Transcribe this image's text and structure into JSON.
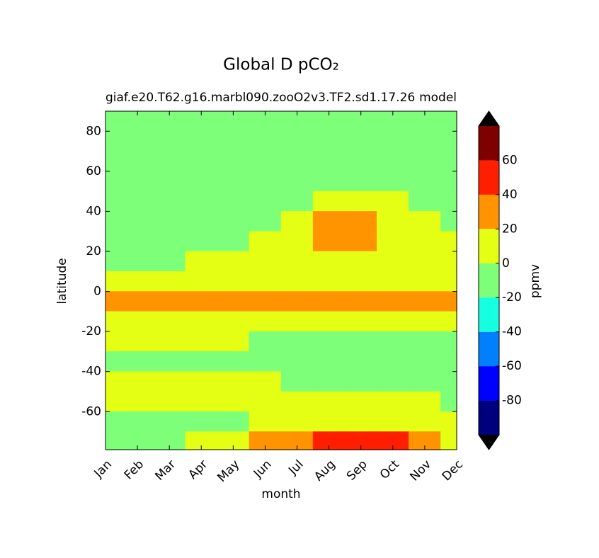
{
  "chart_data": {
    "type": "contourf",
    "title": "Global D pCO₂",
    "subtitle_left": "giaf.e20.T62.g16.marbl090.zooO2v3.TF2.sd1.17.26",
    "subtitle_right": "model",
    "x_label": "month",
    "y_label": "latitude",
    "categories": [
      "Jan",
      "Feb",
      "Mar",
      "Apr",
      "May",
      "Jun",
      "Jul",
      "Aug",
      "Sep",
      "Oct",
      "Nov",
      "Dec"
    ],
    "lat": [
      85,
      75,
      65,
      55,
      45,
      35,
      25,
      15,
      5,
      -5,
      -15,
      -25,
      -35,
      -45,
      -55,
      -65,
      -75
    ],
    "z": [
      [
        -8,
        -8,
        -8,
        -8,
        -8,
        -8,
        -8,
        -8,
        -8,
        -8,
        -8,
        -8
      ],
      [
        -8,
        -8,
        -8,
        -8,
        -8,
        -8,
        -8,
        -8,
        -8,
        -8,
        -8,
        -8
      ],
      [
        -8,
        -8,
        -8,
        -8,
        -8,
        -8,
        -8,
        -8,
        -8,
        -8,
        -8,
        -8
      ],
      [
        -8,
        -8,
        -8,
        -8,
        -8,
        -8,
        -8,
        -8,
        -8,
        -8,
        -8,
        -8
      ],
      [
        -8,
        -8,
        -8,
        -8,
        -8,
        -8,
        -8,
        10,
        10,
        10,
        -8,
        -8
      ],
      [
        -8,
        -8,
        -8,
        -8,
        -8,
        -8,
        10,
        28,
        28,
        10,
        10,
        -8
      ],
      [
        -8,
        -8,
        -8,
        -8,
        -8,
        10,
        10,
        28,
        28,
        10,
        10,
        10
      ],
      [
        -8,
        -8,
        -8,
        10,
        10,
        10,
        10,
        10,
        10,
        10,
        10,
        10
      ],
      [
        10,
        10,
        10,
        10,
        10,
        10,
        10,
        10,
        10,
        10,
        10,
        10
      ],
      [
        28,
        28,
        28,
        28,
        28,
        28,
        28,
        28,
        28,
        28,
        28,
        28
      ],
      [
        10,
        10,
        10,
        10,
        10,
        10,
        10,
        10,
        10,
        10,
        10,
        10
      ],
      [
        10,
        10,
        10,
        10,
        10,
        -8,
        -8,
        -8,
        -8,
        -8,
        -8,
        -8
      ],
      [
        -8,
        -8,
        -8,
        -8,
        -8,
        -8,
        -8,
        -8,
        -8,
        -8,
        -8,
        -8
      ],
      [
        10,
        10,
        10,
        10,
        10,
        10,
        -8,
        -8,
        -8,
        -8,
        -8,
        -8
      ],
      [
        10,
        10,
        10,
        10,
        10,
        10,
        10,
        10,
        10,
        10,
        10,
        -8
      ],
      [
        -8,
        -8,
        -8,
        -8,
        -8,
        10,
        10,
        10,
        10,
        10,
        10,
        10
      ],
      [
        -8,
        -8,
        -8,
        10,
        10,
        28,
        28,
        45,
        45,
        45,
        28,
        10
      ]
    ],
    "ylim": [
      -79,
      90
    ],
    "yticks": [
      -60,
      -40,
      -20,
      0,
      20,
      40,
      60,
      80
    ],
    "colorbar": {
      "label": "ppmv",
      "levels": [
        -100,
        -80,
        -60,
        -40,
        -20,
        0,
        20,
        40,
        60,
        80
      ],
      "colors": [
        "#00007f",
        "#0000ff",
        "#0080ff",
        "#15ffe1",
        "#7dff7a",
        "#e4ff13",
        "#ff9400",
        "#ff1e00",
        "#7f0000"
      ],
      "extend_colors": [
        "#000000",
        "#000000"
      ],
      "ticks": [
        -80,
        -60,
        -40,
        -20,
        0,
        20,
        40,
        60
      ]
    }
  }
}
